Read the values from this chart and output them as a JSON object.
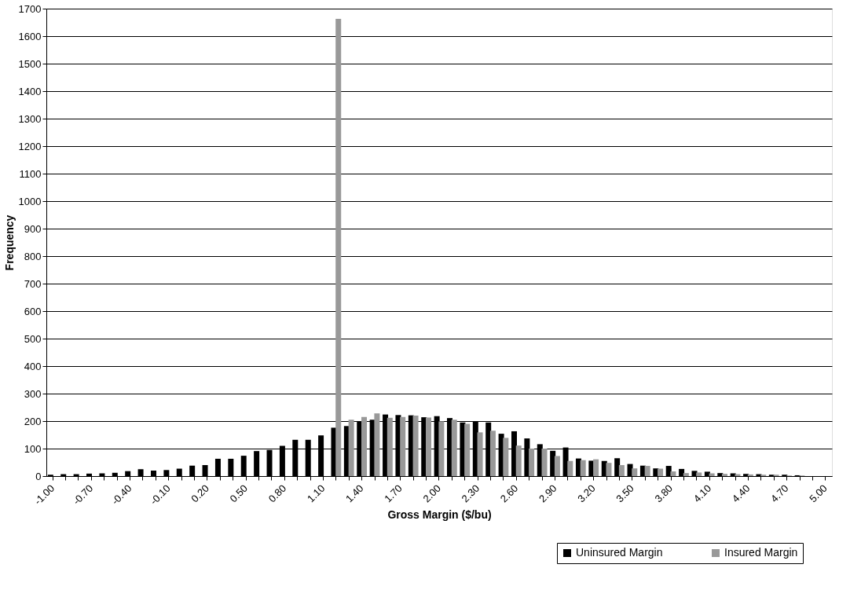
{
  "chart_data": {
    "type": "bar",
    "xlabel": "Gross Margin ($/bu)",
    "ylabel": "Frequency",
    "categories": [
      "-1.00",
      null,
      null,
      "-0.70",
      null,
      null,
      "-0.40",
      null,
      null,
      "-0.10",
      null,
      null,
      "0.20",
      null,
      null,
      "0.50",
      null,
      null,
      "0.80",
      null,
      null,
      "1.10",
      null,
      null,
      "1.40",
      null,
      null,
      "1.70",
      null,
      null,
      "2.00",
      null,
      null,
      "2.30",
      null,
      null,
      "2.60",
      null,
      null,
      "2.90",
      null,
      null,
      "3.20",
      null,
      null,
      "3.50",
      null,
      null,
      "3.80",
      null,
      null,
      "4.10",
      null,
      null,
      "4.40",
      null,
      null,
      "4.70",
      null,
      null,
      "5.00"
    ],
    "series": [
      {
        "name": "Uninsured Margin",
        "color": "#000000",
        "values": [
          5,
          7,
          7,
          9,
          10,
          12,
          18,
          25,
          20,
          22,
          27,
          38,
          40,
          63,
          63,
          74,
          91,
          95,
          110,
          132,
          132,
          148,
          176,
          182,
          199,
          205,
          224,
          222,
          221,
          214,
          218,
          211,
          195,
          199,
          195,
          154,
          163,
          137,
          116,
          92,
          104,
          64,
          56,
          55,
          65,
          44,
          38,
          28,
          37,
          26,
          19,
          16,
          11,
          10,
          8,
          7,
          5,
          5,
          3,
          0,
          0
        ]
      },
      {
        "name": "Insured Margin",
        "color": "#999999",
        "values": [
          0,
          0,
          0,
          0,
          0,
          0,
          0,
          0,
          0,
          0,
          0,
          0,
          0,
          0,
          0,
          0,
          0,
          0,
          0,
          0,
          0,
          0,
          1663,
          205,
          215,
          228,
          212,
          215,
          220,
          213,
          199,
          205,
          190,
          159,
          165,
          139,
          111,
          100,
          100,
          73,
          55,
          58,
          61,
          48,
          40,
          28,
          37,
          27,
          17,
          11,
          13,
          10,
          8,
          7,
          6,
          5,
          5,
          2,
          2,
          0,
          0
        ]
      }
    ],
    "ylim": [
      0,
      1700
    ],
    "yticks": [
      0,
      100,
      200,
      300,
      400,
      500,
      600,
      700,
      800,
      900,
      1000,
      1100,
      1200,
      1300,
      1400,
      1500,
      1600,
      1700
    ],
    "grid": "y",
    "legend": "bottom"
  }
}
